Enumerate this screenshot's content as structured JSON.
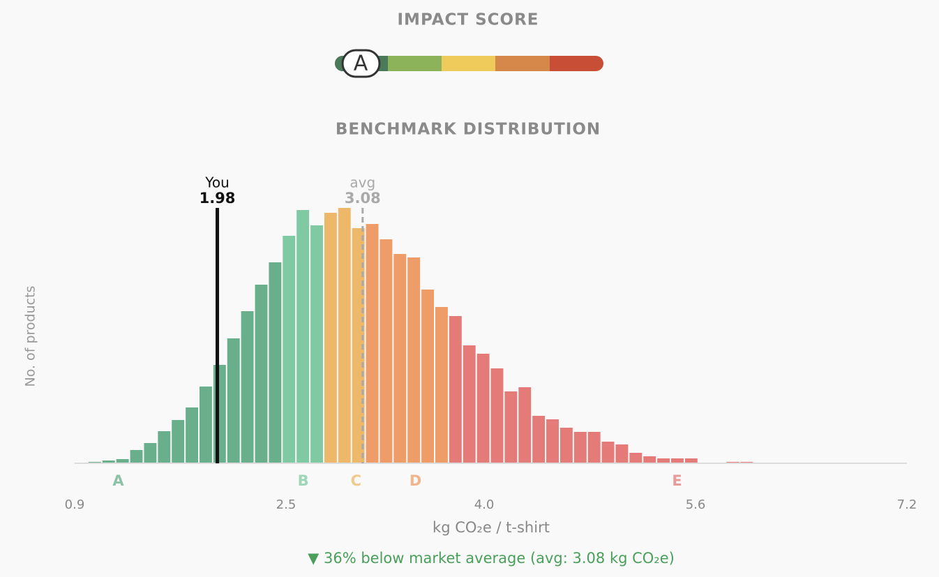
{
  "header": {
    "title": "IMPACT SCORE",
    "grade": "A"
  },
  "chart_data": {
    "type": "histogram",
    "title": "BENCHMARK DISTRIBUTION",
    "x_label": "kg CO₂e / t-shirt",
    "y_label": "No. of products",
    "bins": [
      1.0,
      1.105,
      1.21,
      1.315,
      1.42,
      1.525,
      1.63,
      1.735,
      1.84,
      1.945,
      2.05,
      2.155,
      2.26,
      2.365,
      2.47,
      2.575,
      2.68,
      2.785,
      2.89,
      2.995,
      3.1,
      3.205,
      3.31,
      3.415,
      3.52,
      3.625,
      3.73,
      3.835,
      3.94,
      4.045,
      4.15,
      4.255,
      4.36,
      4.465,
      4.57,
      4.675,
      4.78,
      4.885,
      4.99,
      5.095,
      5.2,
      5.305,
      5.41,
      5.515,
      5.62,
      5.725,
      5.83,
      5.935,
      6.04,
      6.145
    ],
    "values": [
      2,
      4,
      6,
      19,
      29,
      46,
      62,
      80,
      110,
      141,
      179,
      218,
      256,
      288,
      326,
      363,
      341,
      359,
      366,
      337,
      343,
      321,
      300,
      295,
      249,
      224,
      211,
      169,
      157,
      136,
      103,
      109,
      68,
      63,
      51,
      45,
      45,
      31,
      27,
      15,
      10,
      7,
      7,
      7,
      1,
      1,
      2,
      2,
      1
    ],
    "xlim": [
      0.9,
      7.2
    ],
    "xticks": [
      0.9,
      2.5,
      {
        "value": 4,
        "label": "4.0"
      },
      5.6,
      7.2
    ],
    "ylim": [
      0,
      380
    ],
    "grades": [
      {
        "label": "A",
        "from": 1.0,
        "x": 1.23,
        "color": "#6aaf8c"
      },
      {
        "label": "B",
        "from": 2.47,
        "x": 2.63,
        "color": "#7fcaa3"
      },
      {
        "label": "C",
        "from": 2.785,
        "x": 3.03,
        "color": "#edb86a"
      },
      {
        "label": "D",
        "from": 3.1,
        "x": 3.48,
        "color": "#ee9d68"
      },
      {
        "label": "E",
        "from": 3.73,
        "x": 5.46,
        "color": "#e47b78"
      }
    ],
    "markers": [
      {
        "label": "You",
        "value": 1.98,
        "color": "#111111",
        "dashed": false
      },
      {
        "label": "avg",
        "value": 3.08,
        "color": "#a9a9a9",
        "dashed": true
      }
    ]
  },
  "footer": "▼ 36% below market average (avg: 3.08 kg CO₂e)"
}
